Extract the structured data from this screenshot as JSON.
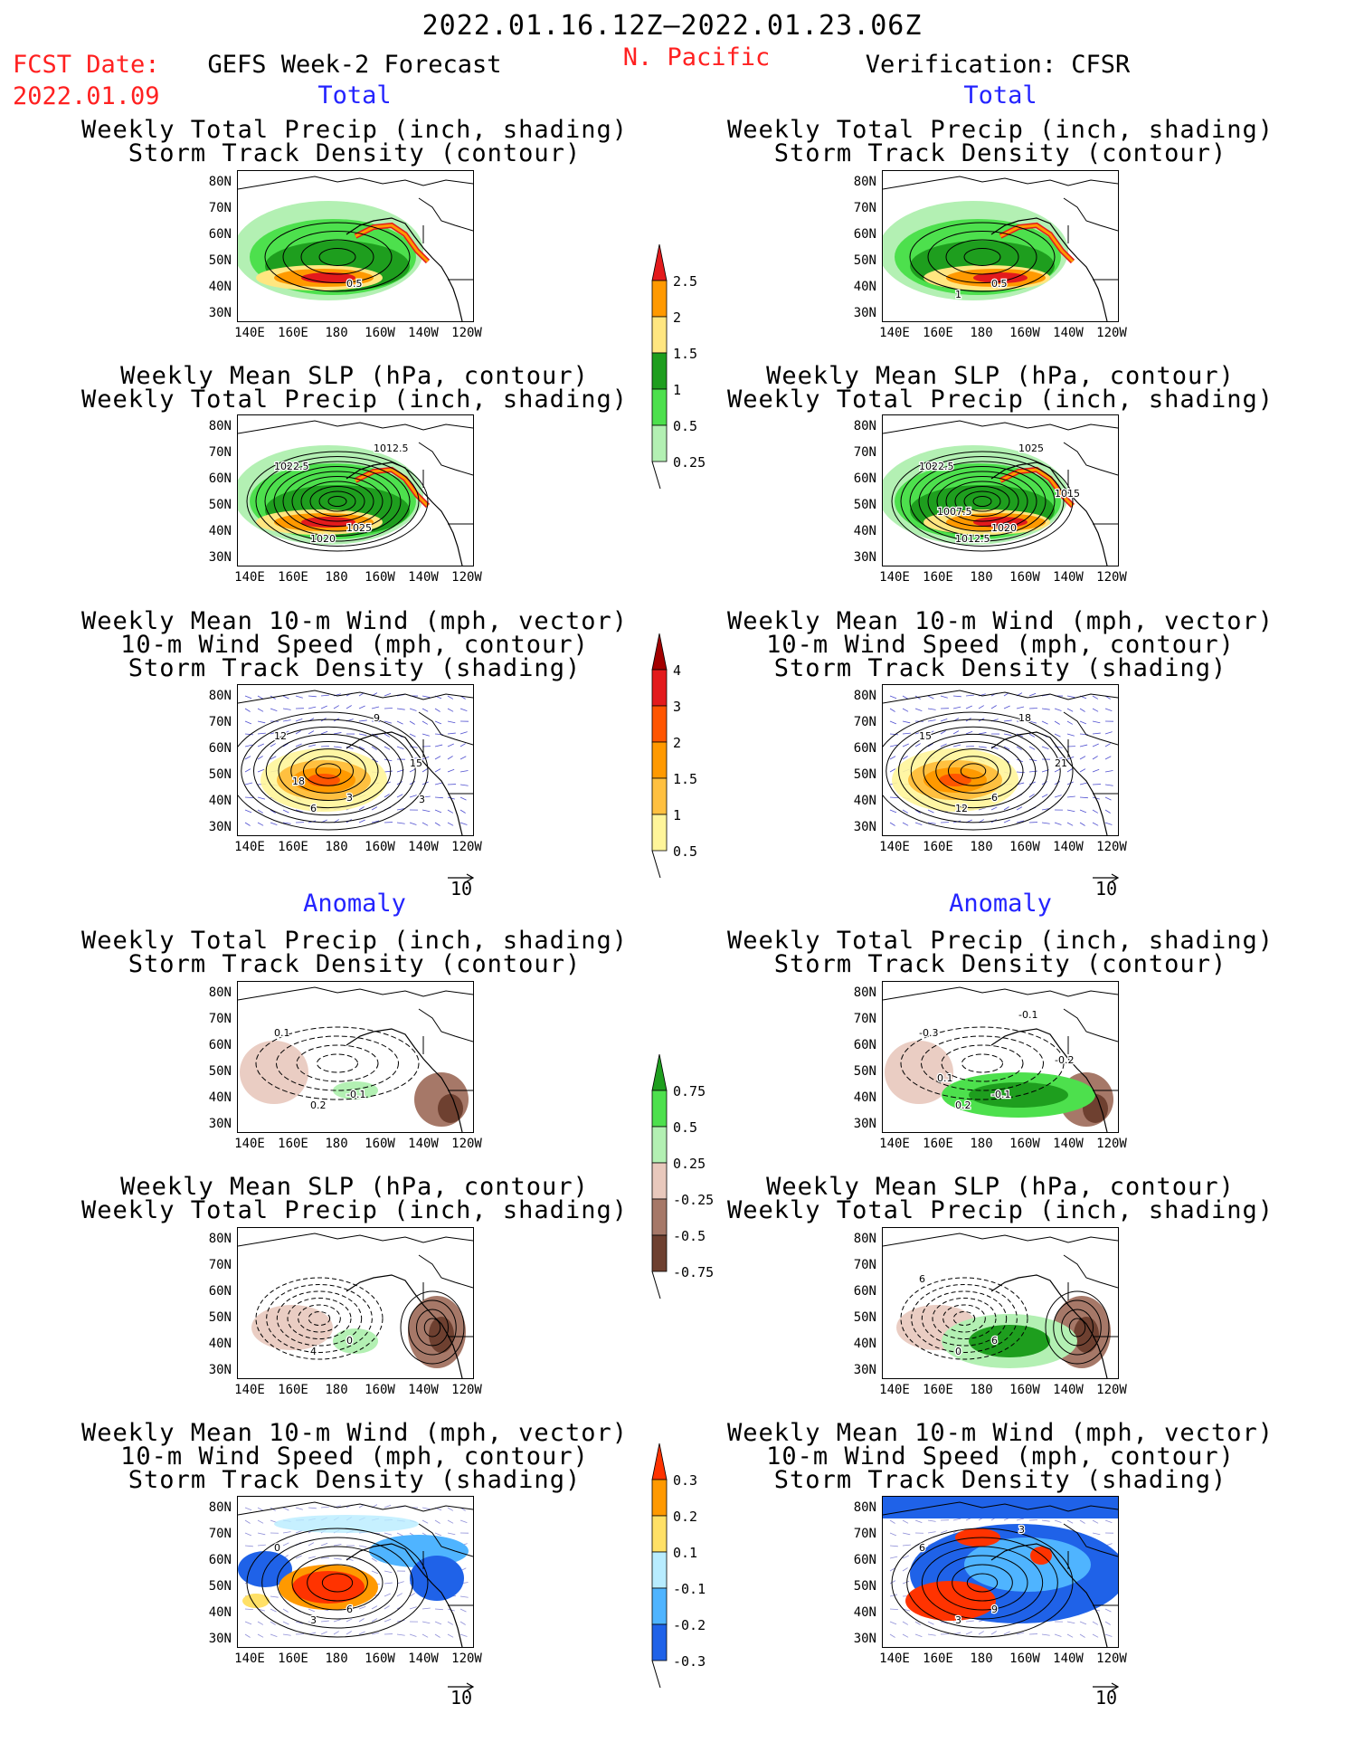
{
  "header": {
    "date_range": "2022.01.16.12Z–2022.01.23.06Z",
    "fcst_label": "FCST Date:",
    "fcst_date": "2022.01.09",
    "left_title": "GEFS Week-2 Forecast",
    "region": "N. Pacific",
    "right_title": "Verification: CFSR"
  },
  "section_labels": {
    "total": "Total",
    "anomaly": "Anomaly"
  },
  "panel_titles": {
    "precip_storm": [
      "Weekly Total Precip (inch, shading)",
      "Storm Track Density (contour)"
    ],
    "slp_precip": [
      "Weekly Mean SLP (hPa, contour)",
      "Weekly Total Precip (inch, shading)"
    ],
    "wind": [
      "Weekly Mean 10-m Wind (mph, vector)",
      "10-m Wind Speed (mph, contour)",
      "Storm Track Density (shading)"
    ]
  },
  "axes": {
    "lat_labels": [
      "80N",
      "70N",
      "60N",
      "50N",
      "40N",
      "30N"
    ],
    "lon_labels": [
      "140E",
      "160E",
      "180",
      "160W",
      "140W",
      "120W"
    ]
  },
  "vector_scale": "10",
  "colorbars": {
    "precip_total": {
      "labels": [
        "2.5",
        "2",
        "1.5",
        "1",
        "0.5",
        "0.25"
      ],
      "colors": [
        "#e31a1c",
        "#ff9900",
        "#ffe680",
        "#1e9e1e",
        "#4de04d",
        "#b3f0b3"
      ]
    },
    "storm_total": {
      "labels": [
        "4",
        "3",
        "2",
        "1.5",
        "1",
        "0.5"
      ],
      "colors": [
        "#a30000",
        "#e31a1c",
        "#ff5500",
        "#ff9900",
        "#ffc040",
        "#fff59a"
      ]
    },
    "precip_anom": {
      "labels": [
        "0.75",
        "0.5",
        "0.25",
        "-0.25",
        "-0.5",
        "-0.75"
      ],
      "colors": [
        "#1e9e1e",
        "#4de04d",
        "#b3f0b3",
        "#e8c8bc",
        "#a67868",
        "#6e4030"
      ]
    },
    "storm_anom": {
      "labels": [
        "0.3",
        "0.2",
        "0.1",
        "-0.1",
        "-0.2",
        "-0.3"
      ],
      "colors": [
        "#ff3300",
        "#ff9900",
        "#ffe066",
        "#b8ecff",
        "#4fb4ff",
        "#1f62e8"
      ]
    }
  },
  "contour_labels": {
    "t1l": [
      "0.5"
    ],
    "t1r": [
      "0.5",
      "1"
    ],
    "t2l": [
      "1025",
      "1020",
      "1022.5",
      "1012.5"
    ],
    "t2r": [
      "1020",
      "1012.5",
      "1022.5",
      "1025",
      "1015",
      "1007.5"
    ],
    "t3l": [
      "3",
      "6",
      "12",
      "9",
      "15",
      "18",
      "3"
    ],
    "t3r": [
      "6",
      "12",
      "15",
      "18",
      "21"
    ],
    "a1l": [
      "-0.1",
      "0.2",
      "0.1"
    ],
    "a1r": [
      "-0.1",
      "0.2",
      "-0.3",
      "-0.1",
      "-0.2",
      "0.1"
    ],
    "a2l": [
      "0",
      "4"
    ],
    "a2r": [
      "6",
      "0",
      "6"
    ],
    "a3l": [
      "6",
      "3",
      "0"
    ],
    "a3r": [
      "9",
      "3",
      "6",
      "3"
    ]
  }
}
